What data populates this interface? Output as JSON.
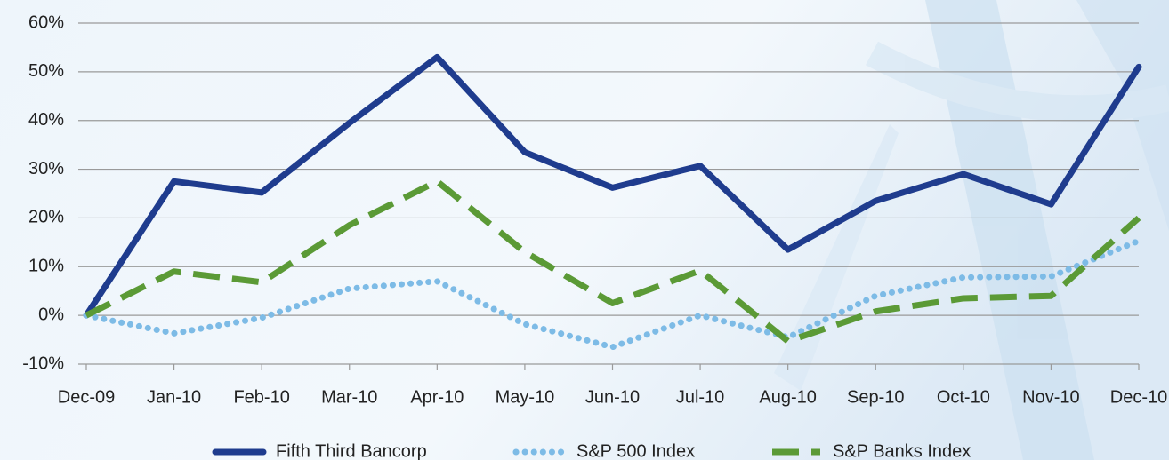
{
  "chart_data": {
    "type": "line",
    "categories": [
      "Dec-09",
      "Jan-10",
      "Feb-10",
      "Mar-10",
      "Apr-10",
      "May-10",
      "Jun-10",
      "Jul-10",
      "Aug-10",
      "Sep-10",
      "Oct-10",
      "Nov-10",
      "Dec-10"
    ],
    "series": [
      {
        "name": "Fifth Third Bancorp",
        "color": "#1f3c8e",
        "values": [
          0,
          27.5,
          25.2,
          39.5,
          53,
          33.5,
          26.2,
          30.7,
          13.5,
          23.5,
          29,
          22.8,
          51
        ]
      },
      {
        "name": "S&P 500 Index",
        "color": "#7dbbe6",
        "values": [
          0,
          -3.7,
          -0.5,
          5.5,
          7,
          -1.8,
          -6.5,
          0,
          -4.5,
          4,
          7.8,
          8,
          15.3
        ]
      },
      {
        "name": "S&P Banks Index",
        "color": "#5b9a36",
        "values": [
          0,
          9,
          6.8,
          18.5,
          27.5,
          13,
          2.5,
          9.2,
          -5.3,
          0.8,
          3.5,
          4,
          20
        ]
      }
    ],
    "ylim": [
      -10,
      60
    ],
    "yticks": [
      {
        "value": -10,
        "label": "-10%"
      },
      {
        "value": 0,
        "label": "0%"
      },
      {
        "value": 10,
        "label": "10%"
      },
      {
        "value": 20,
        "label": "20%"
      },
      {
        "value": 30,
        "label": "30%"
      },
      {
        "value": 40,
        "label": "40%"
      },
      {
        "value": 50,
        "label": "50%"
      },
      {
        "value": 60,
        "label": "60%"
      }
    ],
    "grid": true
  }
}
